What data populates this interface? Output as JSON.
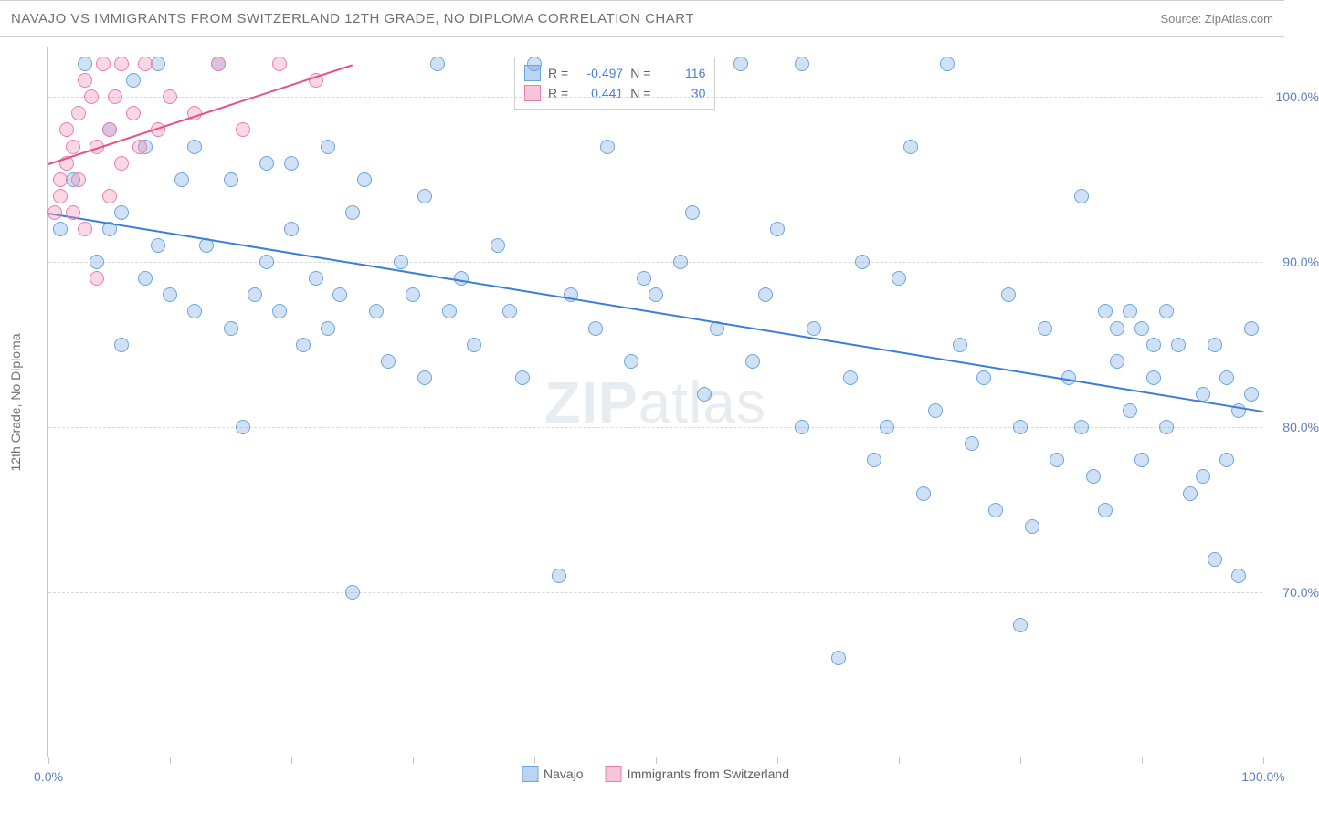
{
  "header": {
    "title": "NAVAJO VS IMMIGRANTS FROM SWITZERLAND 12TH GRADE, NO DIPLOMA CORRELATION CHART",
    "source": "Source: ZipAtlas.com"
  },
  "chart": {
    "type": "scatter",
    "ylabel": "12th Grade, No Diploma",
    "background_color": "#ffffff",
    "grid_color": "#d8d8d8",
    "axis_color": "#c8c8c8",
    "marker_size": 16,
    "xlim": [
      0,
      100
    ],
    "ylim": [
      60,
      103
    ],
    "xticks": [
      0,
      10,
      20,
      30,
      40,
      50,
      60,
      70,
      80,
      90,
      100
    ],
    "xtick_labels_shown": {
      "0": "0.0%",
      "100": "100.0%"
    },
    "yticks": [
      70,
      80,
      90,
      100
    ],
    "ytick_labels": [
      "70.0%",
      "80.0%",
      "90.0%",
      "100.0%"
    ],
    "ytick_label_color": "#5a7fc4",
    "label_fontsize": 14,
    "watermark": "ZIPatlas",
    "series": [
      {
        "name": "Navajo",
        "color_fill": "rgba(120,170,230,0.35)",
        "color_stroke": "#6aa5de",
        "trend_color": "#3b7dd8",
        "R": "-0.497",
        "N": "116",
        "trend": {
          "x1": 0,
          "y1": 93,
          "x2": 100,
          "y2": 81
        },
        "points": [
          [
            1,
            92
          ],
          [
            2,
            95
          ],
          [
            3,
            102
          ],
          [
            4,
            90
          ],
          [
            5,
            92
          ],
          [
            5,
            98
          ],
          [
            6,
            85
          ],
          [
            6,
            93
          ],
          [
            7,
            101
          ],
          [
            8,
            89
          ],
          [
            8,
            97
          ],
          [
            9,
            91
          ],
          [
            9,
            102
          ],
          [
            10,
            88
          ],
          [
            11,
            95
          ],
          [
            12,
            87
          ],
          [
            12,
            97
          ],
          [
            13,
            91
          ],
          [
            14,
            102
          ],
          [
            15,
            86
          ],
          [
            15,
            95
          ],
          [
            16,
            80
          ],
          [
            17,
            88
          ],
          [
            18,
            96
          ],
          [
            18,
            90
          ],
          [
            19,
            87
          ],
          [
            20,
            92
          ],
          [
            20,
            96
          ],
          [
            21,
            85
          ],
          [
            22,
            89
          ],
          [
            23,
            97
          ],
          [
            23,
            86
          ],
          [
            24,
            88
          ],
          [
            25,
            93
          ],
          [
            25,
            70
          ],
          [
            26,
            95
          ],
          [
            27,
            87
          ],
          [
            28,
            84
          ],
          [
            29,
            90
          ],
          [
            30,
            88
          ],
          [
            31,
            94
          ],
          [
            31,
            83
          ],
          [
            32,
            102
          ],
          [
            33,
            87
          ],
          [
            34,
            89
          ],
          [
            35,
            85
          ],
          [
            37,
            91
          ],
          [
            38,
            87
          ],
          [
            39,
            83
          ],
          [
            40,
            102
          ],
          [
            42,
            71
          ],
          [
            43,
            88
          ],
          [
            45,
            86
          ],
          [
            46,
            97
          ],
          [
            48,
            84
          ],
          [
            49,
            89
          ],
          [
            50,
            88
          ],
          [
            52,
            90
          ],
          [
            53,
            93
          ],
          [
            54,
            82
          ],
          [
            55,
            86
          ],
          [
            57,
            102
          ],
          [
            58,
            84
          ],
          [
            59,
            88
          ],
          [
            60,
            92
          ],
          [
            62,
            80
          ],
          [
            62,
            102
          ],
          [
            63,
            86
          ],
          [
            65,
            66
          ],
          [
            66,
            83
          ],
          [
            67,
            90
          ],
          [
            68,
            78
          ],
          [
            69,
            80
          ],
          [
            70,
            89
          ],
          [
            71,
            97
          ],
          [
            72,
            76
          ],
          [
            73,
            81
          ],
          [
            74,
            102
          ],
          [
            75,
            85
          ],
          [
            76,
            79
          ],
          [
            77,
            83
          ],
          [
            78,
            75
          ],
          [
            79,
            88
          ],
          [
            80,
            68
          ],
          [
            80,
            80
          ],
          [
            81,
            74
          ],
          [
            82,
            86
          ],
          [
            83,
            78
          ],
          [
            84,
            83
          ],
          [
            85,
            94
          ],
          [
            85,
            80
          ],
          [
            86,
            77
          ],
          [
            87,
            87
          ],
          [
            87,
            75
          ],
          [
            88,
            86
          ],
          [
            88,
            84
          ],
          [
            89,
            81
          ],
          [
            89,
            87
          ],
          [
            90,
            78
          ],
          [
            90,
            86
          ],
          [
            91,
            85
          ],
          [
            91,
            83
          ],
          [
            92,
            87
          ],
          [
            92,
            80
          ],
          [
            93,
            85
          ],
          [
            94,
            76
          ],
          [
            95,
            82
          ],
          [
            95,
            77
          ],
          [
            96,
            85
          ],
          [
            96,
            72
          ],
          [
            97,
            78
          ],
          [
            97,
            83
          ],
          [
            98,
            81
          ],
          [
            98,
            71
          ],
          [
            99,
            82
          ],
          [
            99,
            86
          ]
        ]
      },
      {
        "name": "Immigrants from Switzerland",
        "color_fill": "rgba(240,140,180,0.35)",
        "color_stroke": "#e87fa8",
        "trend_color": "#e84f8a",
        "R": "0.441",
        "N": "30",
        "trend": {
          "x1": 0,
          "y1": 96,
          "x2": 25,
          "y2": 102
        },
        "points": [
          [
            0.5,
            93
          ],
          [
            1,
            95
          ],
          [
            1,
            94
          ],
          [
            1.5,
            96
          ],
          [
            1.5,
            98
          ],
          [
            2,
            97
          ],
          [
            2,
            93
          ],
          [
            2.5,
            99
          ],
          [
            2.5,
            95
          ],
          [
            3,
            101
          ],
          [
            3,
            92
          ],
          [
            3.5,
            100
          ],
          [
            4,
            97
          ],
          [
            4,
            89
          ],
          [
            4.5,
            102
          ],
          [
            5,
            94
          ],
          [
            5,
            98
          ],
          [
            5.5,
            100
          ],
          [
            6,
            96
          ],
          [
            6,
            102
          ],
          [
            7,
            99
          ],
          [
            7.5,
            97
          ],
          [
            8,
            102
          ],
          [
            9,
            98
          ],
          [
            10,
            100
          ],
          [
            12,
            99
          ],
          [
            14,
            102
          ],
          [
            16,
            98
          ],
          [
            19,
            102
          ],
          [
            22,
            101
          ]
        ]
      }
    ],
    "legend_bottom": [
      {
        "swatch": "blue",
        "label": "Navajo"
      },
      {
        "swatch": "pink",
        "label": "Immigrants from Switzerland"
      }
    ]
  }
}
